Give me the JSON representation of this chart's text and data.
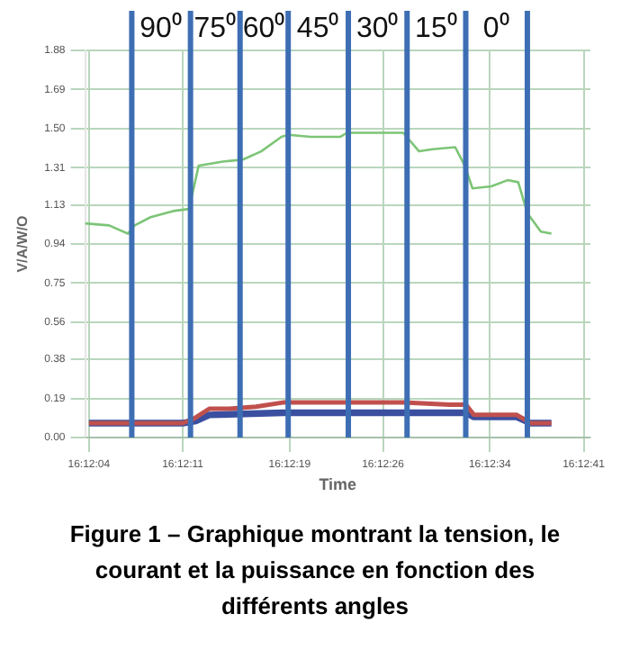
{
  "chart_data": {
    "type": "line",
    "xlabel": "Time",
    "ylabel": "V/A/W/O",
    "xlim": [
      16.20103,
      16.21153
    ],
    "xticks": [
      {
        "value": 16.20111,
        "label": "16:12:04"
      },
      {
        "value": 16.20306,
        "label": "16:12:11"
      },
      {
        "value": 16.20528,
        "label": "16:12:19"
      },
      {
        "value": 16.20722,
        "label": "16:12:26"
      },
      {
        "value": 16.20944,
        "label": "16:12:34"
      },
      {
        "value": 16.21139,
        "label": "16:12:41"
      }
    ],
    "ylim": [
      0,
      1.88
    ],
    "yticks": [
      {
        "value": 0,
        "label": "0.00"
      },
      0.19,
      0.38,
      0.56,
      0.75,
      0.94,
      1.13,
      1.31,
      {
        "value": 1.5,
        "label": "1.50"
      },
      1.69,
      1.88
    ],
    "grid": true,
    "marker": "none",
    "line_style": "solid",
    "series": [
      {
        "color": "#7cc576",
        "x": [
          16.20103,
          16.20153,
          16.20192,
          16.20206,
          16.20239,
          16.20286,
          16.20319,
          16.20339,
          16.20389,
          16.20431,
          16.20469,
          16.20511,
          16.20525,
          16.20572,
          16.20633,
          16.20647,
          16.20694,
          16.20764,
          16.20797,
          16.20825,
          16.20872,
          16.20892,
          16.20908,
          16.20947,
          16.20981,
          16.21003,
          16.21022,
          16.2105,
          16.21072
        ],
        "values": [
          1.04,
          1.03,
          0.99,
          1.03,
          1.07,
          1.1,
          1.11,
          1.32,
          1.34,
          1.35,
          1.39,
          1.46,
          1.47,
          1.46,
          1.46,
          1.48,
          1.48,
          1.48,
          1.39,
          1.4,
          1.41,
          1.32,
          1.21,
          1.22,
          1.25,
          1.24,
          1.09,
          1.0,
          0.99
        ]
      },
      {
        "color": "#c0504d",
        "x": [
          16.20111,
          16.20306,
          16.20328,
          16.20361,
          16.20403,
          16.20458,
          16.20514,
          16.20653,
          16.20764,
          16.20861,
          16.20894,
          16.20911,
          16.21,
          16.21028,
          16.21072
        ],
        "values": [
          0.07,
          0.07,
          0.09,
          0.14,
          0.14,
          0.15,
          0.17,
          0.17,
          0.17,
          0.16,
          0.16,
          0.11,
          0.11,
          0.07,
          0.07
        ]
      },
      {
        "color": "#3a4fa0",
        "x": [
          16.20111,
          16.20306,
          16.20333,
          16.20361,
          16.20514,
          16.20764,
          16.20894,
          16.20911,
          16.21,
          16.21028,
          16.21072
        ],
        "values": [
          0.07,
          0.07,
          0.08,
          0.11,
          0.12,
          0.12,
          0.12,
          0.1,
          0.1,
          0.07,
          0.07
        ]
      }
    ],
    "ref_lines": [
      {
        "axis": "x",
        "value": 16.202,
        "color": "#3d6eb4"
      },
      {
        "axis": "x",
        "value": 16.20322,
        "color": "#3d6eb4"
      },
      {
        "axis": "x",
        "value": 16.20425,
        "color": "#3d6eb4"
      },
      {
        "axis": "x",
        "value": 16.20525,
        "color": "#3d6eb4"
      },
      {
        "axis": "x",
        "value": 16.2065,
        "color": "#3d6eb4"
      },
      {
        "axis": "x",
        "value": 16.20772,
        "color": "#3d6eb4"
      },
      {
        "axis": "x",
        "value": 16.20894,
        "color": "#3d6eb4"
      },
      {
        "axis": "x",
        "value": 16.21022,
        "color": "#3d6eb4"
      }
    ],
    "annotations": [
      "90⁰",
      "75⁰",
      "60⁰",
      "45⁰",
      "30⁰",
      "15⁰",
      "0⁰",
      "Figure 1 – Graphique montrant la tension, le courant et la puissance en fonction des différents angles"
    ]
  }
}
